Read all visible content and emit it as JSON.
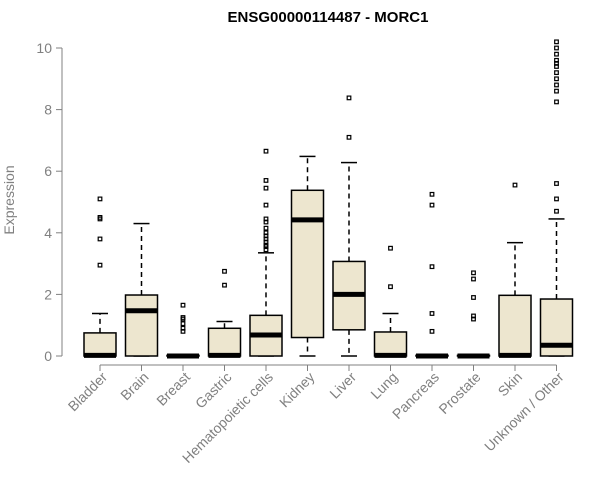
{
  "chart_data": {
    "type": "boxplot",
    "title": "ENSG00000114487 - MORC1",
    "ylabel": "Expression",
    "xlabel": "",
    "ylim": [
      0,
      10
    ],
    "yticks": [
      0,
      2,
      4,
      6,
      8,
      10
    ],
    "grid": false,
    "legend": "none",
    "box_fill": "#ede6cf",
    "box_stroke": "#000000",
    "categories": [
      "Bladder",
      "Brain",
      "Breast",
      "Gastric",
      "Hematopoietic cells",
      "Kidney",
      "Liver",
      "Lung",
      "Pancreas",
      "Prostate",
      "Skin",
      "Unknown / Other"
    ],
    "boxes": [
      {
        "category": "Bladder",
        "whisker_low": 0,
        "q1": 0,
        "median": 0.02,
        "q3": 0.75,
        "whisker_high": 1.38,
        "outliers": [
          2.95,
          3.8,
          4.45,
          4.5,
          5.1
        ]
      },
      {
        "category": "Brain",
        "whisker_low": 0,
        "q1": 0,
        "median": 1.47,
        "q3": 1.98,
        "whisker_high": 4.3,
        "outliers": []
      },
      {
        "category": "Breast",
        "whisker_low": 0,
        "q1": 0,
        "median": 0.0,
        "q3": 0.02,
        "whisker_high": 0.03,
        "outliers": [
          0.8,
          0.9,
          1.05,
          1.2,
          1.25,
          1.65
        ]
      },
      {
        "category": "Gastric",
        "whisker_low": 0,
        "q1": 0,
        "median": 0.02,
        "q3": 0.9,
        "whisker_high": 1.12,
        "outliers": [
          2.3,
          2.75
        ]
      },
      {
        "category": "Hematopoietic cells",
        "whisker_low": 0,
        "q1": 0,
        "median": 0.68,
        "q3": 1.32,
        "whisker_high": 3.35,
        "outliers": [
          3.45,
          3.55,
          3.6,
          3.7,
          3.8,
          3.9,
          4.0,
          4.15,
          4.35,
          4.45,
          4.9,
          5.45,
          5.7,
          6.65
        ]
      },
      {
        "category": "Kidney",
        "whisker_low": 0,
        "q1": 0.6,
        "median": 4.42,
        "q3": 5.38,
        "whisker_high": 6.48,
        "outliers": []
      },
      {
        "category": "Liver",
        "whisker_low": 0,
        "q1": 0.85,
        "median": 2.0,
        "q3": 3.07,
        "whisker_high": 6.28,
        "outliers": [
          7.1,
          8.38
        ]
      },
      {
        "category": "Lung",
        "whisker_low": 0,
        "q1": 0,
        "median": 0.02,
        "q3": 0.78,
        "whisker_high": 1.38,
        "outliers": [
          2.25,
          3.5
        ]
      },
      {
        "category": "Pancreas",
        "whisker_low": 0,
        "q1": 0,
        "median": 0.0,
        "q3": 0.02,
        "whisker_high": 0.03,
        "outliers": [
          0.8,
          1.38,
          2.9,
          4.9,
          5.25
        ]
      },
      {
        "category": "Prostate",
        "whisker_low": 0,
        "q1": 0,
        "median": 0.0,
        "q3": 0.02,
        "whisker_high": 0.03,
        "outliers": [
          1.2,
          1.3,
          1.9,
          2.5,
          2.7
        ]
      },
      {
        "category": "Skin",
        "whisker_low": 0,
        "q1": 0,
        "median": 0.02,
        "q3": 1.97,
        "whisker_high": 3.68,
        "outliers": [
          5.55
        ]
      },
      {
        "category": "Unknown / Other",
        "whisker_low": 0,
        "q1": 0,
        "median": 0.35,
        "q3": 1.85,
        "whisker_high": 4.45,
        "outliers": [
          4.7,
          5.1,
          5.6,
          8.25,
          8.6,
          8.8,
          9.0,
          9.2,
          9.4,
          9.5,
          9.6,
          9.8,
          10.0,
          10.2
        ]
      }
    ]
  }
}
